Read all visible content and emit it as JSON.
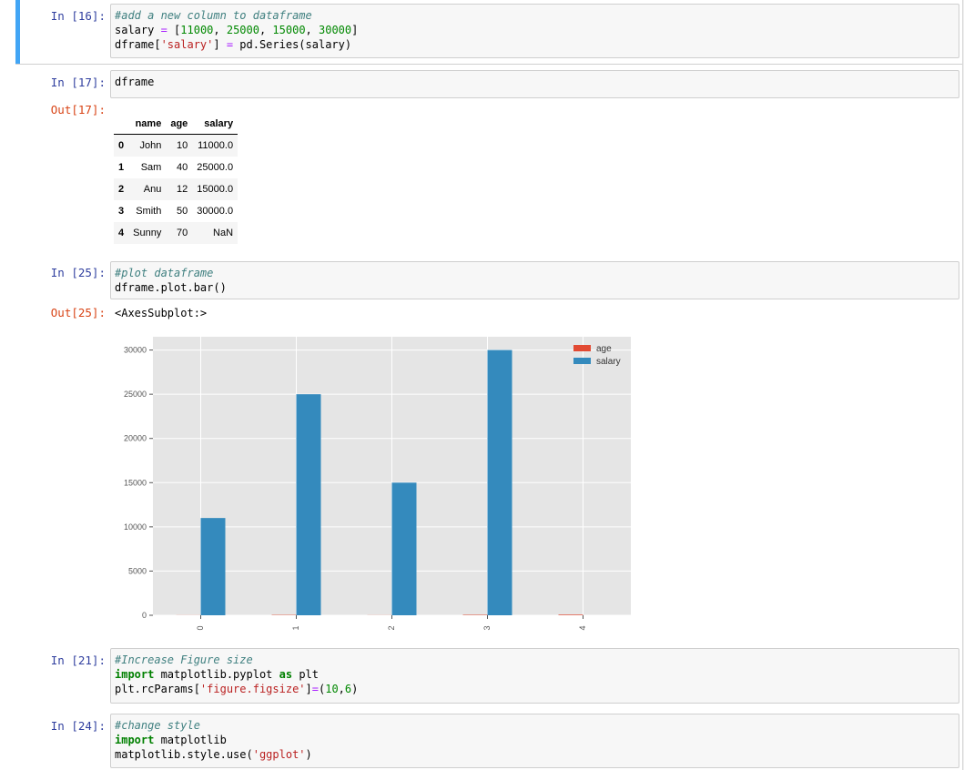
{
  "cells": [
    {
      "prompt": "In [16]:",
      "lines": [
        [
          {
            "t": "#add a new column to dataframe",
            "c": "comment"
          }
        ],
        [
          {
            "t": "salary "
          },
          {
            "t": "=",
            "c": "op"
          },
          {
            "t": " ["
          },
          {
            "t": "11000",
            "c": "number"
          },
          {
            "t": ", "
          },
          {
            "t": "25000",
            "c": "number"
          },
          {
            "t": ", "
          },
          {
            "t": "15000",
            "c": "number"
          },
          {
            "t": ", "
          },
          {
            "t": "30000",
            "c": "number"
          },
          {
            "t": "]"
          }
        ],
        [
          {
            "t": "dframe["
          },
          {
            "t": "'salary'",
            "c": "string"
          },
          {
            "t": "] "
          },
          {
            "t": "=",
            "c": "op"
          },
          {
            "t": " pd.Series(salary)"
          }
        ]
      ]
    },
    {
      "prompt": "In [17]:",
      "lines": [
        [
          {
            "t": "dframe"
          }
        ]
      ]
    },
    {
      "prompt": "In [25]:",
      "lines": [
        [
          {
            "t": "#plot dataframe",
            "c": "comment"
          }
        ],
        [
          {
            "t": "dframe.plot.bar()"
          }
        ]
      ]
    },
    {
      "prompt": "In [21]:",
      "lines": [
        [
          {
            "t": "#Increase Figure size",
            "c": "comment"
          }
        ],
        [
          {
            "t": "import",
            "c": "kw"
          },
          {
            "t": " matplotlib.pyplot "
          },
          {
            "t": "as",
            "c": "kw"
          },
          {
            "t": " plt"
          }
        ],
        [
          {
            "t": "plt.rcParams["
          },
          {
            "t": "'figure.figsize'",
            "c": "string"
          },
          {
            "t": "]"
          },
          {
            "t": "=",
            "c": "op"
          },
          {
            "t": "("
          },
          {
            "t": "10",
            "c": "number"
          },
          {
            "t": ","
          },
          {
            "t": "6",
            "c": "number"
          },
          {
            "t": ")"
          }
        ]
      ]
    },
    {
      "prompt": "In [24]:",
      "lines": [
        [
          {
            "t": "#change style",
            "c": "comment"
          }
        ],
        [
          {
            "t": "import",
            "c": "kw"
          },
          {
            "t": " matplotlib"
          }
        ],
        [
          {
            "t": "matplotlib.style.use("
          },
          {
            "t": "'ggplot'",
            "c": "string"
          },
          {
            "t": ")"
          }
        ]
      ]
    }
  ],
  "outputs": {
    "out17_prompt": "Out[17]:",
    "out25_prompt": "Out[25]:",
    "out25_text": "<AxesSubplot:>"
  },
  "dataframe": {
    "columns": [
      "",
      "name",
      "age",
      "salary"
    ],
    "rows": [
      [
        "0",
        "John",
        "10",
        "11000.0"
      ],
      [
        "1",
        "Sam",
        "40",
        "25000.0"
      ],
      [
        "2",
        "Anu",
        "12",
        "15000.0"
      ],
      [
        "3",
        "Smith",
        "50",
        "30000.0"
      ],
      [
        "4",
        "Sunny",
        "70",
        "NaN"
      ]
    ]
  },
  "chart_data": {
    "type": "bar",
    "categories": [
      "0",
      "1",
      "2",
      "3",
      "4"
    ],
    "series": [
      {
        "name": "age",
        "values": [
          10,
          40,
          12,
          50,
          70
        ],
        "color": "#e24a33"
      },
      {
        "name": "salary",
        "values": [
          11000,
          25000,
          15000,
          30000,
          null
        ],
        "color": "#348abd"
      }
    ],
    "yticks": [
      0,
      5000,
      10000,
      15000,
      20000,
      25000,
      30000
    ],
    "ylim": [
      0,
      31500
    ],
    "grid": true,
    "legend": "top-right",
    "style": "ggplot"
  },
  "colors": {
    "selected_cell_bar": "#42a5f5",
    "in_prompt": "#303f9f",
    "out_prompt": "#d84315",
    "plot_background": "#e5e5e5"
  }
}
